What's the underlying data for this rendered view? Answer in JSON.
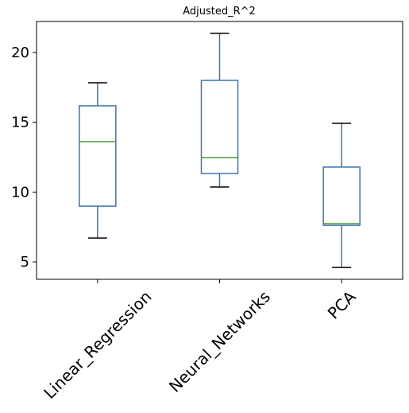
{
  "chart_data": {
    "type": "box",
    "title": "Adjusted_R^2",
    "categories": [
      "Linear_Regression",
      "Neural_Networks",
      "PCA"
    ],
    "boxes": [
      {
        "whisker_low": 6.71,
        "q1": 8.99,
        "median": 13.61,
        "q3": 16.18,
        "whisker_high": 17.83
      },
      {
        "whisker_low": 10.36,
        "q1": 11.33,
        "median": 12.47,
        "q3": 18.0,
        "whisker_high": 21.37
      },
      {
        "whisker_low": 4.6,
        "q1": 7.62,
        "median": 7.74,
        "q3": 11.79,
        "whisker_high": 14.92
      }
    ],
    "box_color": "#3b75af",
    "median_color": "#4a9a3a",
    "cap_color": "#000000",
    "ylim": [
      3.75,
      22.22
    ],
    "yticks": [
      5,
      10,
      15,
      20
    ]
  }
}
